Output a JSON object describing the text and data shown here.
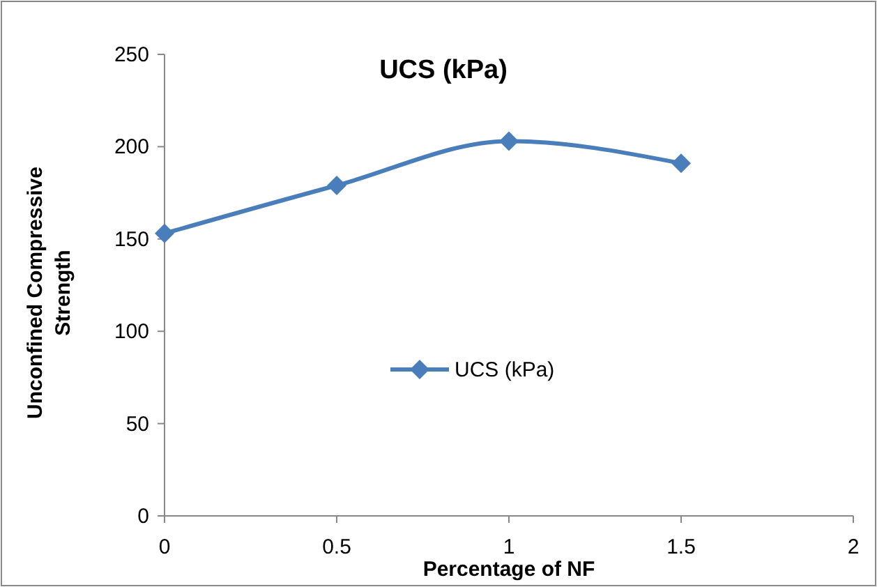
{
  "chart_data": {
    "type": "line",
    "title": "UCS (kPa)",
    "xlabel": "Percentage of NF",
    "ylabel": "Unconfined Compressive Strength",
    "x": [
      0,
      0.5,
      1,
      1.5
    ],
    "series": [
      {
        "name": "UCS (kPa)",
        "color": "#4a7ebb",
        "values": [
          153,
          179,
          203,
          191
        ]
      }
    ],
    "xlim": [
      0,
      2
    ],
    "xticks": [
      0,
      0.5,
      1,
      1.5,
      2
    ],
    "ylim": [
      0,
      250
    ],
    "yticks": [
      0,
      50,
      100,
      150,
      200,
      250
    ],
    "grid": false,
    "legend": "center",
    "marker": "diamond",
    "line_style": "solid"
  }
}
